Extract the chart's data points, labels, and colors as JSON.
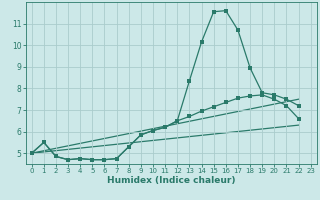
{
  "xlabel": "Humidex (Indice chaleur)",
  "bg_color": "#cce8e8",
  "grid_color": "#aacccc",
  "line_color": "#2a7a6a",
  "xlim": [
    -0.5,
    23.5
  ],
  "ylim": [
    4.5,
    12.0
  ],
  "xticks": [
    0,
    1,
    2,
    3,
    4,
    5,
    6,
    7,
    8,
    9,
    10,
    11,
    12,
    13,
    14,
    15,
    16,
    17,
    18,
    19,
    20,
    21,
    22,
    23
  ],
  "yticks": [
    5,
    6,
    7,
    8,
    9,
    10,
    11
  ],
  "curve1_x": [
    0,
    1,
    2,
    3,
    4,
    5,
    6,
    7,
    8,
    9,
    10,
    11,
    12,
    13,
    14,
    15,
    16,
    17,
    18,
    19,
    20,
    21,
    22
  ],
  "curve1_y": [
    5.0,
    5.5,
    4.85,
    4.7,
    4.75,
    4.7,
    4.7,
    4.75,
    5.3,
    5.85,
    6.05,
    6.2,
    6.5,
    8.35,
    10.15,
    11.55,
    11.6,
    10.7,
    8.95,
    7.8,
    7.7,
    7.5,
    7.2
  ],
  "curve2_x": [
    0,
    1,
    2,
    3,
    4,
    5,
    6,
    7,
    8,
    9,
    10,
    11,
    12,
    13,
    14,
    15,
    16,
    17,
    18,
    19,
    20,
    21,
    22
  ],
  "curve2_y": [
    5.0,
    5.5,
    4.85,
    4.7,
    4.75,
    4.7,
    4.7,
    4.75,
    5.3,
    5.85,
    6.05,
    6.2,
    6.5,
    6.7,
    6.95,
    7.15,
    7.35,
    7.55,
    7.65,
    7.7,
    7.5,
    7.2,
    6.6
  ],
  "line3_x": [
    0,
    22
  ],
  "line3_y": [
    5.0,
    7.5
  ],
  "line4_x": [
    0,
    22
  ],
  "line4_y": [
    5.0,
    6.3
  ]
}
